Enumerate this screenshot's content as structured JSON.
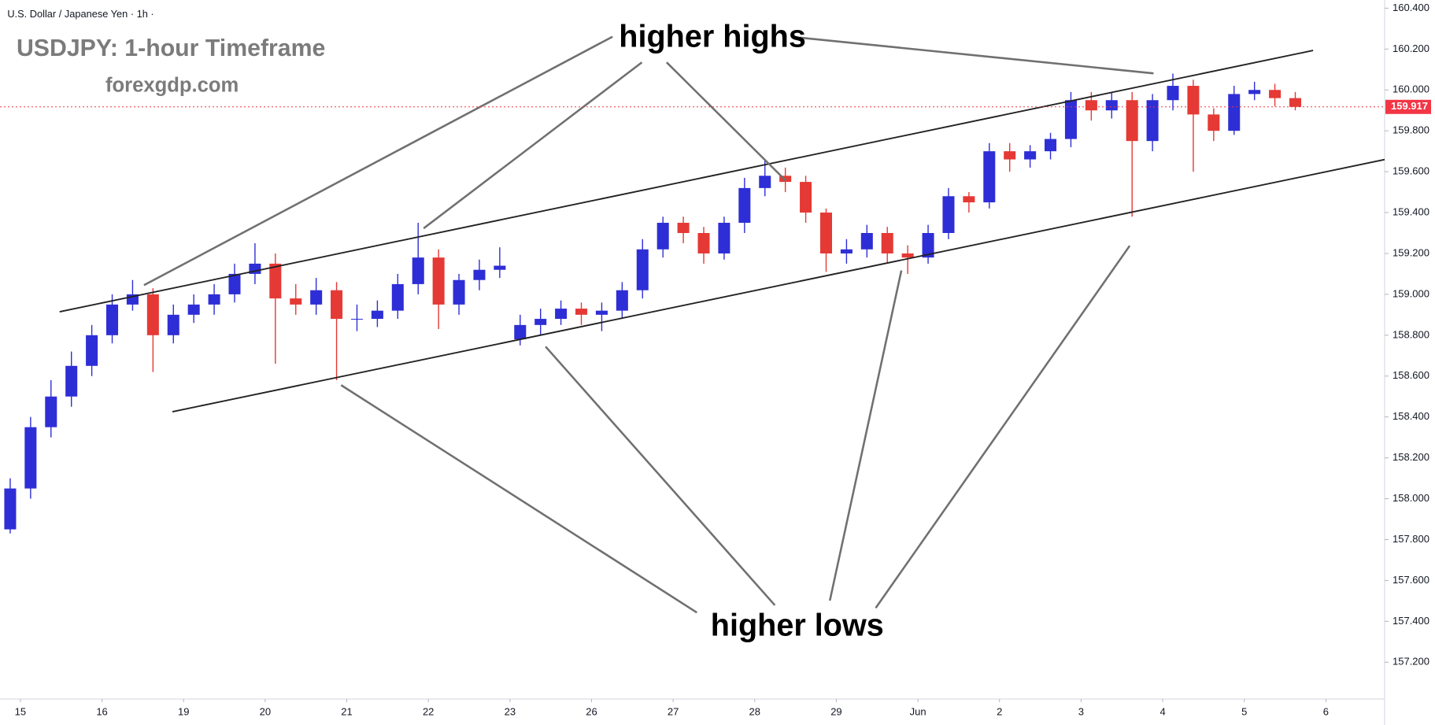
{
  "chart_data": {
    "type": "candlestick",
    "subtitle": "U.S. Dollar / Japanese Yen · 1h ·",
    "title": "USDJPY: 1-hour Timeframe",
    "source": "forexgdp.com",
    "annotations": [
      "higher highs",
      "higher lows"
    ],
    "up_color": "#2e2ed6",
    "down_color": "#e53935",
    "grid": false,
    "current_price": 159.917,
    "current_price_color": "#f23645",
    "xlim": [
      -0.25,
      16.72
    ],
    "xticks": [
      {
        "value": 0,
        "label": "15"
      },
      {
        "value": 1,
        "label": "16"
      },
      {
        "value": 2,
        "label": "19"
      },
      {
        "value": 3,
        "label": "20"
      },
      {
        "value": 4,
        "label": "21"
      },
      {
        "value": 5,
        "label": "22"
      },
      {
        "value": 6,
        "label": "23"
      },
      {
        "value": 7,
        "label": "26"
      },
      {
        "value": 8,
        "label": "27"
      },
      {
        "value": 9,
        "label": "28"
      },
      {
        "value": 10,
        "label": "29"
      },
      {
        "value": 11,
        "label": "Jun"
      },
      {
        "value": 12,
        "label": "2"
      },
      {
        "value": 13,
        "label": "3"
      },
      {
        "value": 14,
        "label": "4"
      },
      {
        "value": 15,
        "label": "5"
      },
      {
        "value": 16,
        "label": "6"
      }
    ],
    "ylim": [
      157.02,
      160.44
    ],
    "yticks": [
      {
        "value": 157.2,
        "label": "157.200"
      },
      {
        "value": 157.4,
        "label": "157.400"
      },
      {
        "value": 157.6,
        "label": "157.600"
      },
      {
        "value": 157.8,
        "label": "157.800"
      },
      {
        "value": 158.0,
        "label": "158.000"
      },
      {
        "value": 158.2,
        "label": "158.200"
      },
      {
        "value": 158.4,
        "label": "158.400"
      },
      {
        "value": 158.6,
        "label": "158.600"
      },
      {
        "value": 158.8,
        "label": "158.800"
      },
      {
        "value": 159.0,
        "label": "159.000"
      },
      {
        "value": 159.2,
        "label": "159.200"
      },
      {
        "value": 159.4,
        "label": "159.400"
      },
      {
        "value": 159.6,
        "label": "159.600"
      },
      {
        "value": 159.8,
        "label": "159.800"
      },
      {
        "value": 160.0,
        "label": "160.000"
      },
      {
        "value": 160.2,
        "label": "160.200"
      },
      {
        "value": 160.4,
        "label": "160.400"
      }
    ],
    "x": [
      -0.125,
      0.125,
      0.375,
      0.625,
      0.875,
      1.125,
      1.375,
      1.625,
      1.875,
      2.125,
      2.375,
      2.625,
      2.875,
      3.125,
      3.375,
      3.625,
      3.875,
      4.125,
      4.375,
      4.625,
      4.875,
      5.125,
      5.375,
      5.625,
      5.875,
      6.125,
      6.375,
      6.625,
      6.875,
      7.125,
      7.375,
      7.625,
      7.875,
      8.125,
      8.375,
      8.625,
      8.875,
      9.125,
      9.375,
      9.625,
      9.875,
      10.125,
      10.375,
      10.625,
      10.875,
      11.125,
      11.375,
      11.625,
      11.875,
      12.125,
      12.375,
      12.625,
      12.875,
      13.125,
      13.375,
      13.625,
      13.875,
      14.125,
      14.375,
      14.625,
      14.875,
      15.125,
      15.375,
      15.625
    ],
    "open": [
      157.85,
      158.05,
      158.35,
      158.5,
      158.65,
      158.8,
      158.95,
      159.0,
      158.8,
      158.9,
      158.95,
      159.0,
      159.1,
      159.15,
      158.98,
      158.95,
      159.02,
      158.88,
      158.88,
      158.92,
      159.05,
      159.18,
      158.95,
      159.07,
      159.12,
      158.78,
      158.85,
      158.88,
      158.93,
      158.9,
      158.92,
      159.02,
      159.22,
      159.35,
      159.3,
      159.2,
      159.35,
      159.52,
      159.58,
      159.55,
      159.4,
      159.2,
      159.22,
      159.3,
      159.2,
      159.18,
      159.3,
      159.48,
      159.45,
      159.7,
      159.66,
      159.7,
      159.76,
      159.95,
      159.9,
      159.95,
      159.75,
      159.95,
      160.02,
      159.88,
      159.8,
      159.98,
      160.0,
      159.96
    ],
    "high": [
      158.1,
      158.4,
      158.58,
      158.72,
      158.85,
      159.0,
      159.07,
      159.03,
      158.95,
      159.0,
      159.05,
      159.15,
      159.25,
      159.2,
      159.05,
      159.08,
      159.06,
      158.95,
      158.97,
      159.1,
      159.35,
      159.22,
      159.1,
      159.17,
      159.23,
      158.9,
      158.93,
      158.97,
      158.96,
      158.96,
      159.06,
      159.27,
      159.38,
      159.38,
      159.33,
      159.38,
      159.57,
      159.66,
      159.62,
      159.58,
      159.42,
      159.27,
      159.34,
      159.33,
      159.24,
      159.34,
      159.52,
      159.5,
      159.74,
      159.74,
      159.73,
      159.79,
      159.99,
      159.99,
      159.99,
      159.99,
      159.98,
      160.08,
      160.05,
      159.91,
      160.02,
      160.04,
      160.03,
      159.99
    ],
    "low": [
      157.83,
      158.0,
      158.3,
      158.45,
      158.6,
      158.76,
      158.92,
      158.62,
      158.76,
      158.86,
      158.9,
      158.96,
      159.05,
      158.66,
      158.9,
      158.9,
      158.58,
      158.82,
      158.84,
      158.88,
      159.0,
      158.83,
      158.9,
      159.02,
      159.08,
      158.75,
      158.8,
      158.85,
      158.85,
      158.82,
      158.88,
      158.98,
      159.18,
      159.25,
      159.15,
      159.17,
      159.3,
      159.48,
      159.5,
      159.35,
      159.11,
      159.15,
      159.18,
      159.15,
      159.1,
      159.15,
      159.27,
      159.4,
      159.42,
      159.6,
      159.62,
      159.66,
      159.72,
      159.85,
      159.86,
      159.38,
      159.7,
      159.9,
      159.6,
      159.75,
      159.78,
      159.95,
      159.92,
      159.9
    ],
    "close": [
      158.05,
      158.35,
      158.5,
      158.65,
      158.8,
      158.95,
      159.0,
      158.8,
      158.9,
      158.95,
      159.0,
      159.1,
      159.15,
      158.98,
      158.95,
      159.02,
      158.88,
      158.88,
      158.92,
      159.05,
      159.18,
      158.95,
      159.07,
      159.12,
      159.14,
      158.85,
      158.88,
      158.93,
      158.9,
      158.92,
      159.02,
      159.22,
      159.35,
      159.3,
      159.2,
      159.35,
      159.52,
      159.58,
      159.55,
      159.4,
      159.2,
      159.22,
      159.3,
      159.2,
      159.18,
      159.3,
      159.48,
      159.45,
      159.7,
      159.66,
      159.7,
      159.76,
      159.95,
      159.9,
      159.95,
      159.75,
      159.95,
      160.02,
      159.88,
      159.8,
      159.98,
      160.0,
      159.96,
      159.917
    ]
  }
}
